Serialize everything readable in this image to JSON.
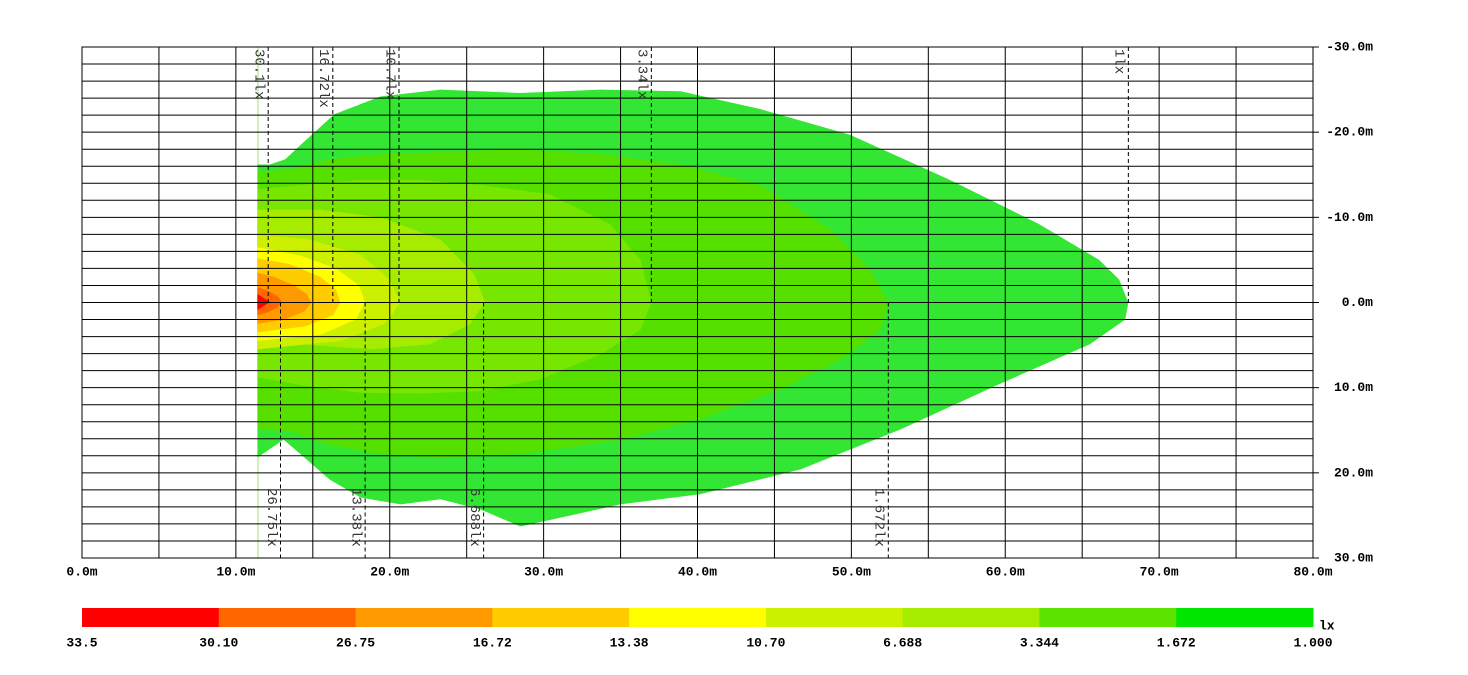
{
  "chart_data": {
    "type": "isolux",
    "xlim": [
      0,
      80
    ],
    "ylim": [
      -30,
      30
    ],
    "xticks": [
      {
        "value": 0,
        "label": "0.0m"
      },
      {
        "value": 10,
        "label": "10.0m"
      },
      {
        "value": 20,
        "label": "20.0m"
      },
      {
        "value": 30,
        "label": "30.0m"
      },
      {
        "value": 40,
        "label": "40.0m"
      },
      {
        "value": 50,
        "label": "50.0m"
      },
      {
        "value": 60,
        "label": "60.0m"
      },
      {
        "value": 70,
        "label": "70.0m"
      },
      {
        "value": 80,
        "label": "80.0m"
      }
    ],
    "yticks": [
      {
        "value": -30,
        "label": "-30.0m"
      },
      {
        "value": -20,
        "label": "-20.0m"
      },
      {
        "value": -10,
        "label": "-10.0m"
      },
      {
        "value": 0,
        "label": "0.0m"
      },
      {
        "value": 10,
        "label": "10.0m"
      },
      {
        "value": 20,
        "label": "20.0m"
      },
      {
        "value": 30,
        "label": "30.0m"
      }
    ],
    "xgrid": [
      0,
      5,
      10,
      15,
      20,
      25,
      30,
      35,
      40,
      45,
      50,
      55,
      60,
      65,
      70,
      75,
      80
    ],
    "ygrid": [
      -30,
      -28,
      -26,
      -24,
      -22,
      -20,
      -18,
      -16,
      -14,
      -12,
      -10,
      -8,
      -6,
      -4,
      -2,
      0,
      2,
      4,
      6,
      8,
      10,
      12,
      14,
      16,
      18,
      20,
      22,
      24,
      26,
      28,
      30
    ],
    "contours": [
      {
        "name": "1lx",
        "color": "#33e633",
        "label_x": 68.0,
        "label_side": "top",
        "x": [
          11.4,
          12.2,
          13.2,
          14.2,
          16.4,
          19.4,
          23.3,
          28.5,
          33.7,
          38.9,
          44.1,
          49.9,
          56.4,
          62.2,
          66.1,
          67.4,
          68.0,
          67.8,
          65.5,
          59.6,
          53.2,
          46.7,
          40.2,
          35.0,
          28.5,
          25.9,
          23.3,
          20.7,
          18.1,
          16.1,
          14.2,
          13.1,
          11.4
        ],
        "y": [
          -16.2,
          -16.2,
          -16.8,
          -18.5,
          -22.1,
          -24.2,
          -25.0,
          -24.6,
          -25.0,
          -24.8,
          -22.7,
          -19.7,
          -14.4,
          -9.2,
          -5.0,
          -2.7,
          0,
          2.0,
          4.9,
          9.6,
          14.9,
          19.6,
          22.5,
          23.7,
          26.3,
          24.3,
          23.1,
          23.7,
          22.9,
          20.8,
          17.8,
          16.1,
          18.2
        ]
      },
      {
        "name": "1.672lx",
        "color": "#55e000",
        "label_x": 52.4,
        "label_side": "bottom",
        "x": [
          11.4,
          13.5,
          16.1,
          19.4,
          23.9,
          28.5,
          33.7,
          38.9,
          44.1,
          48.6,
          51.2,
          52.4,
          51.9,
          49.3,
          45.4,
          40.2,
          35.0,
          28.5,
          23.3,
          19.4,
          16.1,
          13.5,
          11.4
        ],
        "y": [
          -15.4,
          -15.6,
          -16.8,
          -17.4,
          -17.7,
          -18.0,
          -17.4,
          -16.2,
          -13.8,
          -8.6,
          -3.9,
          0,
          3.2,
          6.7,
          10.2,
          13.7,
          16.1,
          17.8,
          18.2,
          17.8,
          16.7,
          15.1,
          14.9
        ]
      },
      {
        "name": "3.34lx",
        "color": "#77e600",
        "label_x": 37.0,
        "label_side": "top",
        "x": [
          11.4,
          14.2,
          18.1,
          21.9,
          25.9,
          30.4,
          34.3,
          36.3,
          37.0,
          36.3,
          33.7,
          29.8,
          25.9,
          21.9,
          18.1,
          14.2,
          11.4
        ],
        "y": [
          -13.3,
          -13.8,
          -14.4,
          -14.4,
          -13.8,
          -12.7,
          -9.2,
          -5.0,
          0,
          3.2,
          6.1,
          9.0,
          10.4,
          10.7,
          10.6,
          9.7,
          8.8
        ]
      },
      {
        "name": "6.688lx",
        "color": "#a5ec00",
        "label_x": 26.1,
        "label_side": "bottom",
        "x": [
          11.4,
          15.5,
          19.4,
          23.3,
          25.5,
          26.2,
          25.2,
          22.6,
          18.7,
          14.2,
          11.4
        ],
        "y": [
          -10.9,
          -10.9,
          -10.0,
          -7.4,
          -3.3,
          0,
          2.6,
          4.9,
          5.5,
          4.9,
          4.3
        ]
      },
      {
        "name": "10.7lx",
        "color": "#ccf000",
        "label_x": 20.6,
        "label_side": "top",
        "x": [
          11.4,
          14.8,
          18.1,
          20.0,
          20.7,
          19.7,
          16.8,
          11.4
        ],
        "y": [
          -8.0,
          -7.4,
          -5.6,
          -2.7,
          0,
          2.5,
          4.5,
          5.5
        ]
      },
      {
        "name": "13.38lx",
        "color": "#ffff00",
        "label_x": 18.4,
        "label_side": "bottom",
        "x": [
          11.4,
          14.2,
          16.5,
          18.0,
          18.4,
          17.8,
          15.5,
          11.4
        ],
        "y": [
          -6.5,
          -5.5,
          -4.0,
          -2.0,
          0,
          2.0,
          3.8,
          4.5
        ]
      },
      {
        "name": "16.72lx",
        "color": "#ffcc00",
        "label_x": 16.3,
        "label_side": "top",
        "x": [
          11.4,
          13.5,
          15.5,
          16.5,
          16.8,
          16.3,
          14.5,
          11.4
        ],
        "y": [
          -5.2,
          -4.5,
          -3.0,
          -1.5,
          0,
          1.5,
          2.8,
          3.5
        ]
      },
      {
        "name": "26.75lx",
        "color": "#ff9900",
        "label_x": 12.9,
        "label_side": "bottom",
        "x": [
          11.4,
          12.5,
          13.8,
          14.6,
          14.9,
          14.5,
          13.2,
          11.4
        ],
        "y": [
          -3.5,
          -3.0,
          -2.0,
          -1.0,
          0,
          1.0,
          2.0,
          2.5
        ]
      },
      {
        "name": "30.1lx",
        "color": "#ff6600",
        "label_x": 12.1,
        "label_side": "top",
        "x": [
          11.4,
          12.2,
          12.8,
          13.0,
          12.7,
          12.0,
          11.4
        ],
        "y": [
          -1.8,
          -1.3,
          -0.6,
          0,
          0.6,
          1.2,
          1.5
        ]
      },
      {
        "color": "#ff0000",
        "x": [
          11.4,
          12.0,
          12.2,
          11.9,
          11.4
        ],
        "y": [
          -1.0,
          -0.3,
          0,
          0.3,
          0.9
        ]
      }
    ],
    "colorbar": {
      "ticks": [
        33.5,
        {
          "value": 30.1,
          "label": "30.10"
        },
        26.75,
        16.72,
        13.38,
        {
          "value": 10.7,
          "label": "10.70"
        },
        6.688,
        3.344,
        1.672,
        {
          "value": 1,
          "label": "1.000"
        }
      ],
      "colors": [
        "#ff0000",
        "#ff6600",
        "#ff9900",
        "#ffcc00",
        "#ffff00",
        "#ccf000",
        "#a5ec00",
        "#5ae400",
        "#00e600"
      ],
      "unit": "lx"
    }
  }
}
